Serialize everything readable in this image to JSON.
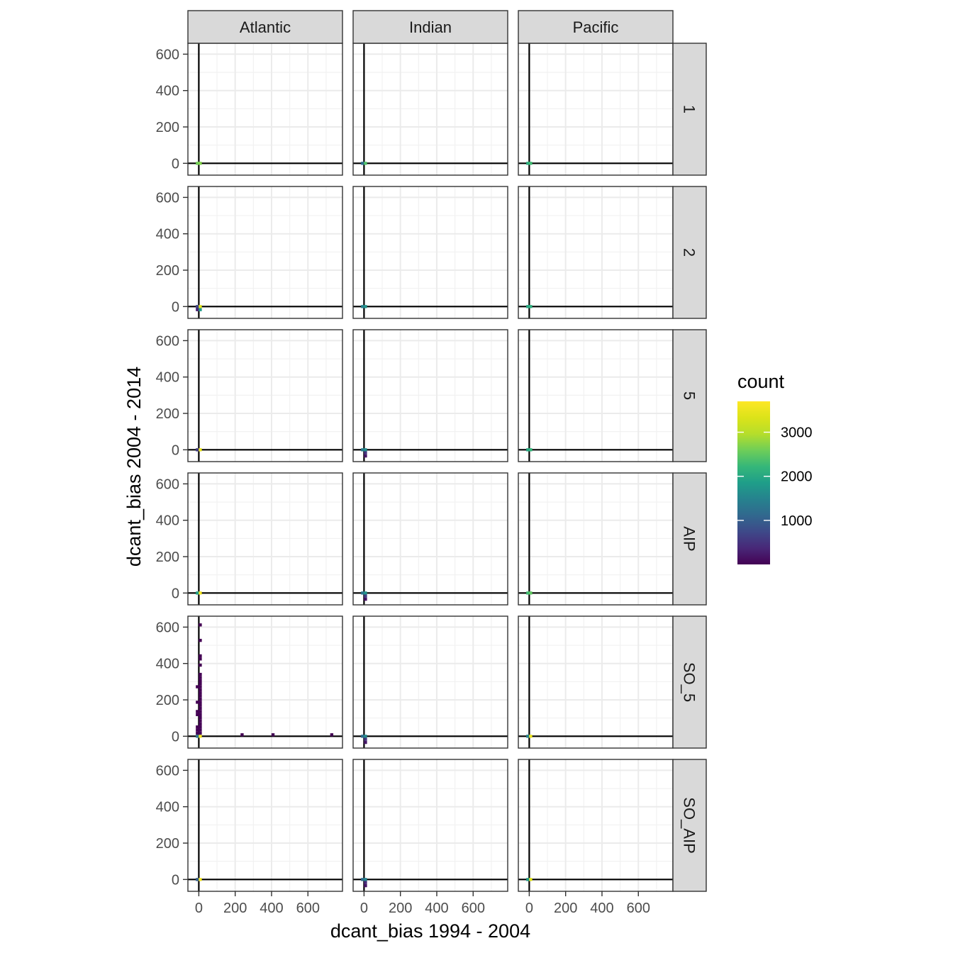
{
  "chart_data": {
    "type": "heatmap",
    "title": "",
    "xlabel": "dcant_bias 1994 - 2004",
    "ylabel": "dcant_bias 2004 - 2014",
    "xlim": [
      -60,
      790
    ],
    "ylim": [
      -65,
      660
    ],
    "x_ticks": [
      0,
      200,
      400,
      600
    ],
    "y_ticks": [
      0,
      200,
      400,
      600
    ],
    "columns": [
      "Atlantic",
      "Indian",
      "Pacific"
    ],
    "rows": [
      "1",
      "2",
      "5",
      "AIP",
      "SO_5",
      "SO_AIP"
    ],
    "bin_width": 17,
    "grid": true,
    "reference_lines": {
      "x": 0,
      "y": 0
    },
    "legend": {
      "title": "count",
      "placement": "right",
      "ticks": [
        1000,
        2000,
        3000
      ],
      "range": [
        1,
        3700
      ],
      "colormap": "viridis"
    },
    "panels": [
      {
        "row": "1",
        "column": "Atlantic",
        "cells": [
          {
            "x": -8,
            "y": 0,
            "count": 2600
          },
          {
            "x": 8,
            "y": 0,
            "count": 2700
          }
        ]
      },
      {
        "row": "1",
        "column": "Indian",
        "cells": [
          {
            "x": -8,
            "y": 0,
            "count": 1200
          },
          {
            "x": 8,
            "y": 0,
            "count": 2400
          }
        ]
      },
      {
        "row": "1",
        "column": "Pacific",
        "cells": [
          {
            "x": -8,
            "y": 0,
            "count": 2100
          },
          {
            "x": 8,
            "y": 0,
            "count": 2300
          }
        ]
      },
      {
        "row": "2",
        "column": "Atlantic",
        "cells": [
          {
            "x": -8,
            "y": 0,
            "count": 700
          },
          {
            "x": 8,
            "y": 0,
            "count": 3400
          },
          {
            "x": -8,
            "y": -17,
            "count": 300
          },
          {
            "x": 8,
            "y": -17,
            "count": 1800
          }
        ]
      },
      {
        "row": "2",
        "column": "Indian",
        "cells": [
          {
            "x": -8,
            "y": 0,
            "count": 1500
          },
          {
            "x": 8,
            "y": 0,
            "count": 1700
          }
        ]
      },
      {
        "row": "2",
        "column": "Pacific",
        "cells": [
          {
            "x": -8,
            "y": 0,
            "count": 2000
          },
          {
            "x": 8,
            "y": 0,
            "count": 2100
          }
        ]
      },
      {
        "row": "5",
        "column": "Atlantic",
        "cells": [
          {
            "x": -8,
            "y": 0,
            "count": 600
          },
          {
            "x": 8,
            "y": 0,
            "count": 3500
          }
        ]
      },
      {
        "row": "5",
        "column": "Indian",
        "cells": [
          {
            "x": -8,
            "y": 0,
            "count": 1400
          },
          {
            "x": 8,
            "y": 0,
            "count": 1600
          },
          {
            "x": 8,
            "y": -17,
            "count": 500
          },
          {
            "x": 8,
            "y": -34,
            "count": 200
          }
        ]
      },
      {
        "row": "5",
        "column": "Pacific",
        "cells": [
          {
            "x": -8,
            "y": 0,
            "count": 2000
          },
          {
            "x": 8,
            "y": 0,
            "count": 2200
          }
        ]
      },
      {
        "row": "AIP",
        "column": "Atlantic",
        "cells": [
          {
            "x": -8,
            "y": 0,
            "count": 1900
          },
          {
            "x": 8,
            "y": 0,
            "count": 3600
          }
        ]
      },
      {
        "row": "AIP",
        "column": "Indian",
        "cells": [
          {
            "x": -8,
            "y": 0,
            "count": 1300
          },
          {
            "x": 8,
            "y": 0,
            "count": 1700
          },
          {
            "x": 8,
            "y": -17,
            "count": 600
          },
          {
            "x": 8,
            "y": -34,
            "count": 150
          }
        ]
      },
      {
        "row": "AIP",
        "column": "Pacific",
        "cells": [
          {
            "x": -8,
            "y": 0,
            "count": 2300
          },
          {
            "x": 8,
            "y": 0,
            "count": 2500
          }
        ]
      },
      {
        "row": "SO_5",
        "column": "Atlantic",
        "cells": [
          {
            "x": -8,
            "y": 0,
            "count": 1300
          },
          {
            "x": 8,
            "y": 0,
            "count": 3600
          },
          {
            "x": 8,
            "y": 17,
            "count": 60
          },
          {
            "x": 8,
            "y": 34,
            "count": 30
          },
          {
            "x": 8,
            "y": 51,
            "count": 20
          },
          {
            "x": 8,
            "y": 68,
            "count": 15
          },
          {
            "x": 8,
            "y": 85,
            "count": 12
          },
          {
            "x": 8,
            "y": 102,
            "count": 10
          },
          {
            "x": 8,
            "y": 119,
            "count": 8
          },
          {
            "x": 8,
            "y": 136,
            "count": 8
          },
          {
            "x": 8,
            "y": 153,
            "count": 6
          },
          {
            "x": 8,
            "y": 170,
            "count": 6
          },
          {
            "x": 8,
            "y": 187,
            "count": 5
          },
          {
            "x": 8,
            "y": 204,
            "count": 5
          },
          {
            "x": 8,
            "y": 221,
            "count": 4
          },
          {
            "x": 8,
            "y": 238,
            "count": 4
          },
          {
            "x": 8,
            "y": 255,
            "count": 3
          },
          {
            "x": 8,
            "y": 272,
            "count": 3
          },
          {
            "x": 8,
            "y": 289,
            "count": 3
          },
          {
            "x": 8,
            "y": 306,
            "count": 2
          },
          {
            "x": 8,
            "y": 323,
            "count": 2
          },
          {
            "x": 8,
            "y": 340,
            "count": 2
          },
          {
            "x": -8,
            "y": 17,
            "count": 12
          },
          {
            "x": -8,
            "y": 34,
            "count": 8
          },
          {
            "x": -8,
            "y": 51,
            "count": 5
          },
          {
            "x": -8,
            "y": 119,
            "count": 4
          },
          {
            "x": -8,
            "y": 136,
            "count": 3
          },
          {
            "x": -8,
            "y": 187,
            "count": 3
          },
          {
            "x": -8,
            "y": 272,
            "count": 2
          },
          {
            "x": 8,
            "y": 391,
            "count": 2
          },
          {
            "x": 8,
            "y": 425,
            "count": 2
          },
          {
            "x": 8,
            "y": 442,
            "count": 2
          },
          {
            "x": 8,
            "y": 527,
            "count": 1
          },
          {
            "x": 8,
            "y": 612,
            "count": 1
          },
          {
            "x": 238,
            "y": 8,
            "count": 1
          },
          {
            "x": 408,
            "y": 8,
            "count": 1
          },
          {
            "x": 731,
            "y": 8,
            "count": 1
          }
        ]
      },
      {
        "row": "SO_5",
        "column": "Indian",
        "cells": [
          {
            "x": -8,
            "y": 0,
            "count": 1200
          },
          {
            "x": 8,
            "y": 0,
            "count": 1600
          },
          {
            "x": 8,
            "y": -17,
            "count": 500
          },
          {
            "x": 8,
            "y": -34,
            "count": 200
          }
        ]
      },
      {
        "row": "SO_5",
        "column": "Pacific",
        "cells": [
          {
            "x": -8,
            "y": 0,
            "count": 1500
          },
          {
            "x": 8,
            "y": 0,
            "count": 3500
          }
        ]
      },
      {
        "row": "SO_AIP",
        "column": "Atlantic",
        "cells": [
          {
            "x": -8,
            "y": 0,
            "count": 1000
          },
          {
            "x": 8,
            "y": 0,
            "count": 3600
          }
        ]
      },
      {
        "row": "SO_AIP",
        "column": "Indian",
        "cells": [
          {
            "x": -8,
            "y": 0,
            "count": 1200
          },
          {
            "x": 8,
            "y": 0,
            "count": 1500
          },
          {
            "x": 8,
            "y": -17,
            "count": 400
          },
          {
            "x": 8,
            "y": -34,
            "count": 200
          }
        ]
      },
      {
        "row": "SO_AIP",
        "column": "Pacific",
        "cells": [
          {
            "x": -8,
            "y": 0,
            "count": 1800
          },
          {
            "x": 8,
            "y": 0,
            "count": 3400
          }
        ]
      }
    ]
  }
}
